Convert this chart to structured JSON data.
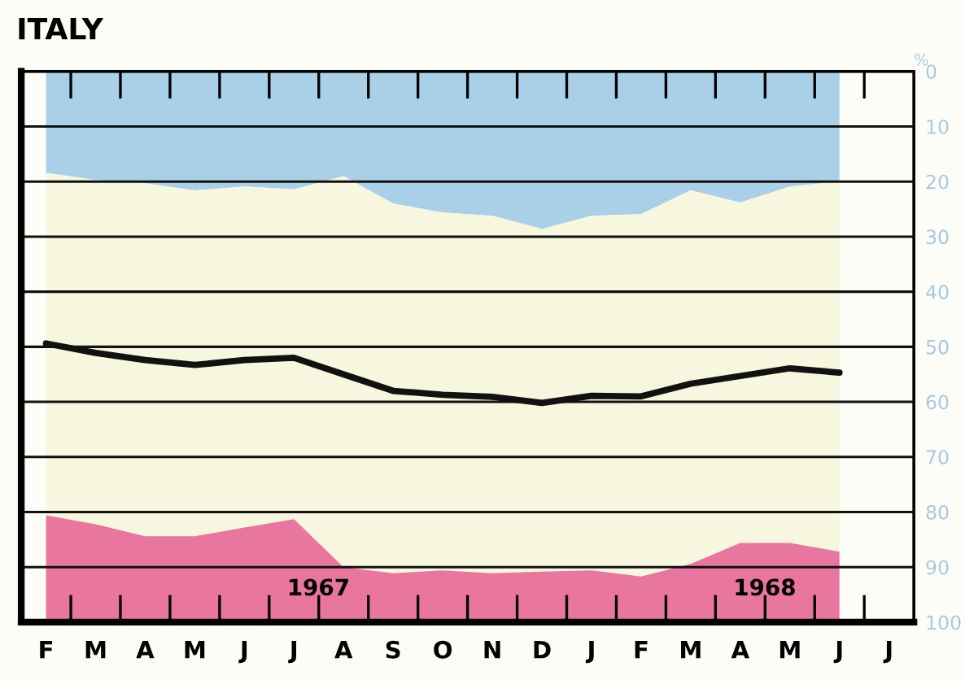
{
  "chart_data": {
    "type": "area",
    "title": "ITALY",
    "ylabel": "%",
    "stacked": true,
    "grid": "y",
    "legend": false,
    "categories": [
      "F",
      "M",
      "A",
      "M",
      "J",
      "J",
      "A",
      "S",
      "O",
      "N",
      "D",
      "J",
      "F",
      "M",
      "A",
      "M",
      "J",
      "J"
    ],
    "ylim": [
      100,
      0
    ],
    "yticks": [
      0,
      10,
      20,
      30,
      40,
      50,
      60,
      70,
      80,
      90,
      100
    ],
    "series": [
      {
        "color": "#a9d0e6",
        "values": [
          18.4,
          19.7,
          20.3,
          21.6,
          20.9,
          21.4,
          19,
          24,
          25.6,
          26.2,
          28.6,
          26.2,
          25.9,
          21.6,
          23.8,
          20.9,
          20,
          null
        ]
      },
      {
        "color": "#f7f6df",
        "values": [
          62.2,
          62.5,
          64.1,
          62.8,
          61.9,
          59.9,
          71,
          67.1,
          65,
          64.9,
          62.2,
          64.4,
          65.8,
          67.8,
          61.8,
          64.7,
          67.2,
          null
        ]
      },
      {
        "color": "#e8769f",
        "values": [
          19.4,
          17.8,
          15.6,
          15.6,
          17.2,
          18.7,
          10,
          8.9,
          9.4,
          8.9,
          9.2,
          9.4,
          8.3,
          10.6,
          14.4,
          14.4,
          12.8,
          null
        ]
      },
      {
        "type": "line",
        "color": "#111111",
        "values": [
          49.4,
          51.1,
          52.4,
          53.3,
          52.4,
          52,
          55,
          58,
          58.7,
          59.1,
          60.2,
          58.9,
          59,
          56.7,
          55.3,
          53.9,
          54.7,
          null
        ]
      }
    ],
    "annotations": [
      "1967",
      "1968"
    ]
  }
}
